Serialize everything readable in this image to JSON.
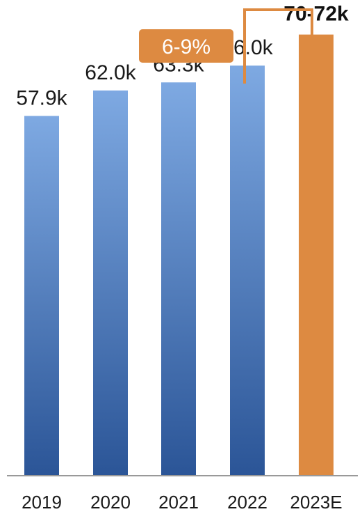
{
  "chart_data": {
    "type": "bar",
    "categories": [
      "2019",
      "2020",
      "2021",
      "2022",
      "2023E"
    ],
    "values": [
      57.9,
      62.0,
      63.3,
      66.0,
      71.0
    ],
    "value_labels": [
      "57.9k",
      "62.0k",
      "63.3k",
      "66.0k",
      "70-72k"
    ],
    "highlight_index": 4,
    "ylim": [
      0,
      76
    ],
    "grid": false,
    "legend": "none",
    "title": "",
    "xlabel": "",
    "ylabel": "",
    "annotation": {
      "text": "6-9%",
      "from_category": "2022",
      "to_category": "2023E"
    }
  },
  "colors": {
    "bar_gradient_top": "#7ea9e2",
    "bar_gradient_bottom": "#2b5597",
    "highlight_bar": "#dd8a41",
    "annotation": "#dd8a41",
    "axis": "#999999"
  }
}
